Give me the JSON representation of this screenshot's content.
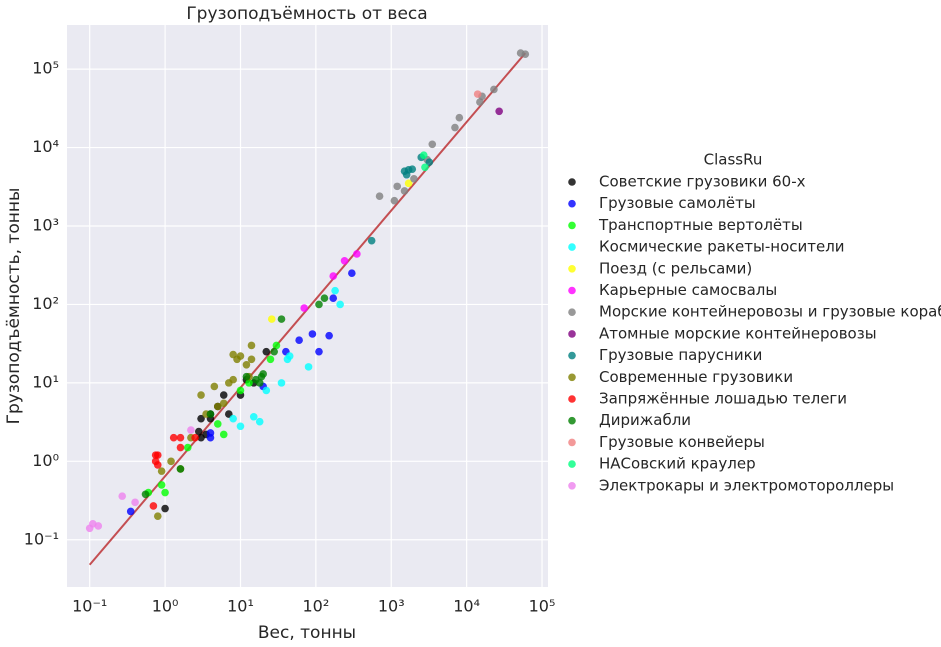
{
  "chart_data": {
    "type": "scatter",
    "title": "Грузоподъёмность от веса",
    "xlabel": "Вес, тонны",
    "ylabel": "Грузоподъёмность, тонны",
    "xscale": "log",
    "yscale": "log",
    "grid": true,
    "legend_title": "ClassRu",
    "legend_position": "right",
    "xlim": [
      0.05,
      120000
    ],
    "ylim": [
      0.025,
      365000
    ],
    "xticks": [
      {
        "value": 0.1,
        "label": "10⁻¹"
      },
      {
        "value": 1,
        "label": "10⁰"
      },
      {
        "value": 10,
        "label": "10¹"
      },
      {
        "value": 100,
        "label": "10²"
      },
      {
        "value": 1000,
        "label": "10³"
      },
      {
        "value": 10000,
        "label": "10⁴"
      },
      {
        "value": 100000,
        "label": "10⁵"
      }
    ],
    "yticks": [
      {
        "value": 0.1,
        "label": "10⁻¹"
      },
      {
        "value": 1,
        "label": "10⁰"
      },
      {
        "value": 10,
        "label": "10¹"
      },
      {
        "value": 100,
        "label": "10²"
      },
      {
        "value": 1000,
        "label": "10³"
      },
      {
        "value": 10000,
        "label": "10⁴"
      },
      {
        "value": 100000,
        "label": "10⁵"
      }
    ],
    "fit": {
      "color": "#c44e52",
      "x": [
        0.1,
        60000
      ],
      "y": [
        0.048,
        160000
      ]
    },
    "series": [
      {
        "name": "Советские грузовики 60-х",
        "color": "#000000",
        "x": [
          3,
          3.5,
          3,
          4,
          5,
          6,
          7,
          10,
          12,
          15,
          22,
          1,
          4,
          2.8
        ],
        "values": [
          2,
          2.2,
          3.5,
          4,
          5,
          7,
          4,
          7,
          11,
          10,
          25,
          0.25,
          3.5,
          2.4
        ]
      },
      {
        "name": "Грузовые самолёты",
        "color": "#0000ff",
        "x": [
          0.35,
          4,
          4,
          20,
          40,
          60,
          90,
          110,
          170,
          300,
          150
        ],
        "values": [
          0.23,
          2,
          2.3,
          9,
          25,
          35,
          42,
          25,
          120,
          250,
          40
        ]
      },
      {
        "name": "Транспортные вертолёты",
        "color": "#00ff00",
        "x": [
          0.9,
          1,
          2,
          5,
          6,
          10,
          13,
          25,
          30,
          0.6
        ],
        "values": [
          0.5,
          0.4,
          1.5,
          3,
          2.2,
          8,
          10,
          20,
          30,
          0.4
        ]
      },
      {
        "name": "Космические ракеты-носители",
        "color": "#00ffff",
        "x": [
          8,
          10,
          15,
          18,
          22,
          35,
          42,
          45,
          80,
          180,
          210
        ],
        "values": [
          3.5,
          2.8,
          3.7,
          3.2,
          8,
          10,
          20,
          22,
          16,
          150,
          100
        ]
      },
      {
        "name": "Поезд (с рельсами)",
        "color": "#ffff00",
        "x": [
          26,
          1700
        ],
        "values": [
          65,
          3500
        ]
      },
      {
        "name": "Карьерные самосвалы",
        "color": "#ff00ff",
        "x": [
          70,
          170,
          240,
          350
        ],
        "values": [
          90,
          230,
          360,
          440
        ]
      },
      {
        "name": "Морские контейнеровозы и грузовые корабли",
        "color": "#808080",
        "x": [
          700,
          1100,
          1500,
          1200,
          3000,
          3500,
          7000,
          8000,
          15000,
          16000,
          23000,
          52000,
          60000,
          2000
        ],
        "values": [
          2400,
          2100,
          2800,
          3200,
          7000,
          11000,
          18000,
          24000,
          38000,
          45000,
          55000,
          160000,
          155000,
          4000
        ]
      },
      {
        "name": "Атомные морские контейнеровозы",
        "color": "#800080",
        "x": [
          27000
        ],
        "values": [
          29000
        ]
      },
      {
        "name": "Грузовые парусники",
        "color": "#008080",
        "x": [
          550,
          1500,
          1700,
          1900,
          1600,
          2500,
          3200
        ],
        "values": [
          650,
          5000,
          5200,
          5300,
          4500,
          7500,
          6500
        ]
      },
      {
        "name": "Современные грузовики",
        "color": "#808000",
        "x": [
          0.8,
          0.9,
          1.2,
          1.6,
          2.2,
          3,
          3.5,
          4.5,
          7,
          8,
          9,
          10,
          12,
          14,
          14,
          8,
          13,
          5,
          6
        ],
        "values": [
          0.2,
          0.75,
          1,
          0.8,
          2,
          7,
          4,
          9,
          10,
          23,
          20,
          22,
          17,
          20,
          30,
          11,
          12,
          5,
          5.5
        ]
      },
      {
        "name": "Запряжённые лошадью телеги",
        "color": "#ff0000",
        "x": [
          0.7,
          0.75,
          0.8,
          0.8,
          0.75,
          1.3,
          1.6,
          1.6,
          2.5
        ],
        "values": [
          0.27,
          1.2,
          1.2,
          0.9,
          1,
          2,
          2,
          1.5,
          2
        ]
      },
      {
        "name": "Дирижабли",
        "color": "#008000",
        "x": [
          0.55,
          1.6,
          4,
          12,
          16,
          18,
          20,
          35,
          110,
          130,
          28,
          19
        ],
        "values": [
          0.38,
          0.8,
          4,
          12,
          11,
          10,
          13,
          65,
          100,
          120,
          25,
          12
        ]
      },
      {
        "name": "Грузовые конвейеры",
        "color": "#f08080",
        "x": [
          14000
        ],
        "values": [
          48000
        ]
      },
      {
        "name": "НАСовский краулер",
        "color": "#00ff7f",
        "x": [
          2700,
          2800
        ],
        "values": [
          8000,
          5600
        ]
      },
      {
        "name": "Электрокары и электромотороллеры",
        "color": "#ee82ee",
        "x": [
          0.1,
          0.11,
          0.13,
          0.27,
          0.4,
          2.2
        ],
        "values": [
          0.14,
          0.16,
          0.15,
          0.36,
          0.3,
          2.5
        ]
      }
    ]
  }
}
